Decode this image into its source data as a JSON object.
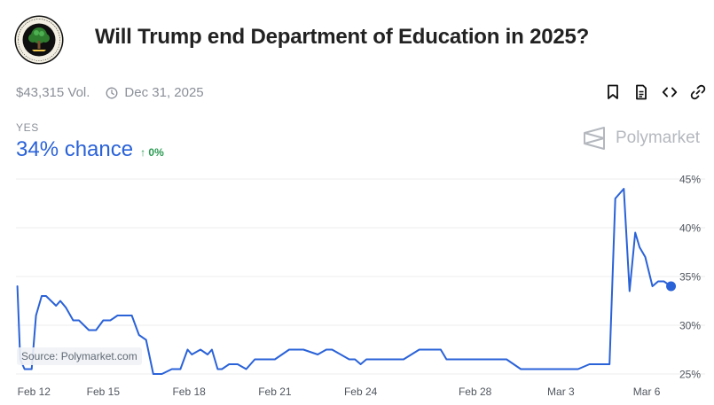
{
  "header": {
    "title": "Will Trump end Department of Education in 2025?",
    "seal_text": "DEPARTMENT OF EDUCATION · UNITED STATES OF AMERICA"
  },
  "meta": {
    "volume": "$43,315 Vol.",
    "end_date": "Dec 31, 2025"
  },
  "actions": [
    {
      "name": "bookmark-icon"
    },
    {
      "name": "document-icon"
    },
    {
      "name": "embed-code-icon"
    },
    {
      "name": "link-icon"
    }
  ],
  "outcome": {
    "label": "YES",
    "chance_text": "34% chance",
    "delta_text": "↑ 0%"
  },
  "brand": {
    "name": "Polymarket"
  },
  "source": "Source: Polymarket.com",
  "colors": {
    "line": "#2a62d8",
    "up": "#2a9a52",
    "muted": "#8a8f98",
    "grid": "#ececec"
  },
  "chart_data": {
    "type": "line",
    "x_tick_labels": [
      "Feb 12",
      "Feb 15",
      "Feb 18",
      "Feb 21",
      "Feb 24",
      "Feb 28",
      "Mar 3",
      "Mar 6"
    ],
    "x_tick_days": [
      12,
      15,
      18,
      21,
      24,
      28,
      31,
      34
    ],
    "x_range_days": [
      11.95,
      35.05
    ],
    "x_day_note": "days counted from Feb 0 (Mar 1 = 29)",
    "y_ticks": [
      25,
      30,
      35,
      40,
      45
    ],
    "y_tick_labels": [
      "25%",
      "30%",
      "35%",
      "40%",
      "45%"
    ],
    "ylim": [
      25,
      45
    ],
    "grid": true,
    "series": [
      {
        "name": "Yes",
        "x": [
          12.0,
          12.1,
          12.25,
          12.5,
          12.65,
          12.85,
          13.0,
          13.35,
          13.5,
          13.7,
          13.95,
          14.15,
          14.5,
          14.75,
          15.0,
          15.25,
          15.5,
          15.75,
          16.0,
          16.25,
          16.5,
          16.75,
          17.05,
          17.4,
          17.7,
          17.95,
          18.1,
          18.4,
          18.65,
          18.8,
          19.0,
          19.15,
          19.4,
          19.55,
          19.7,
          20.0,
          20.3,
          20.5,
          20.7,
          21.0,
          21.5,
          21.75,
          22.0,
          22.5,
          22.8,
          23.0,
          23.6,
          23.8,
          24.0,
          24.2,
          24.45,
          24.8,
          25.5,
          26.05,
          26.3,
          26.8,
          27.0,
          27.6,
          28.0,
          28.2,
          28.5,
          29.1,
          29.6,
          29.9,
          30.15,
          30.5,
          31.0,
          31.6,
          32.0,
          32.7,
          32.9,
          33.2,
          33.4,
          33.6,
          33.75,
          33.85,
          33.95,
          34.2,
          34.4,
          34.6,
          34.85
        ],
        "y": [
          34,
          26.5,
          25.5,
          25.5,
          31,
          33,
          33,
          32,
          32.5,
          31.8,
          30.5,
          30.5,
          29.5,
          29.5,
          30.5,
          30.5,
          31,
          31,
          31,
          29,
          28.5,
          25,
          25,
          25.5,
          25.5,
          27.5,
          27,
          27.5,
          27.0,
          27.5,
          25.5,
          25.5,
          26,
          26,
          26,
          25.5,
          26.5,
          26.5,
          26.5,
          26.5,
          27.5,
          27.5,
          27.5,
          27.0,
          27.5,
          27.5,
          26.5,
          26.5,
          26,
          26.5,
          26.5,
          26.5,
          26.5,
          27.5,
          27.5,
          27.5,
          26.5,
          26.5,
          26.5,
          26.5,
          26.5,
          26.5,
          25.5,
          25.5,
          25.5,
          25.5,
          25.5,
          25.5,
          26,
          26,
          43,
          44,
          33.5,
          39.5,
          38,
          37.5,
          37,
          34,
          34.5,
          34.5,
          34
        ]
      }
    ],
    "last_value": 34
  }
}
